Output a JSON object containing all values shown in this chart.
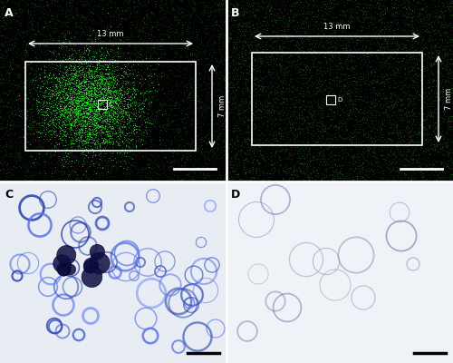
{
  "figure_width": 5.0,
  "figure_height": 4.0,
  "dpi": 100,
  "panel_labels": [
    "A",
    "B",
    "C",
    "D"
  ],
  "annotation_13mm": "13 mm",
  "annotation_7mm": "7 mm",
  "label_C": "C",
  "label_D": "D"
}
